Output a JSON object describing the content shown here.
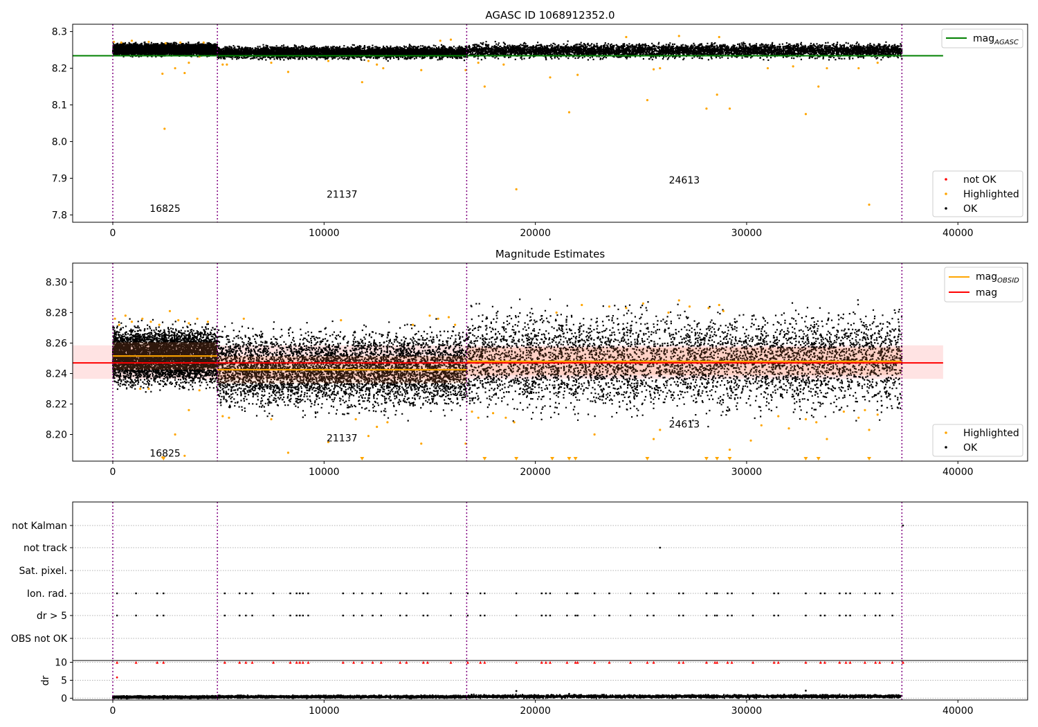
{
  "legend_labels": {
    "mag_agasc": "mag",
    "mag_agasc_sub": "AGASC",
    "mag_obsid": "mag",
    "mag_obsid_sub": "OBSID",
    "mag": "mag",
    "not_ok": "not OK",
    "highlighted": "Highlighted",
    "ok": "OK"
  },
  "colors": {
    "ok": "#000000",
    "highlighted": "#ffa500",
    "not_ok": "#ff0000",
    "mag_agasc": "#008000",
    "mag_obsid": "#ffa500",
    "mag": "#ff0000",
    "band": "#ffc0c0",
    "boundary": "#800080"
  },
  "chart_data": [
    {
      "id": "agasc",
      "type": "scatter",
      "title": "AGASC ID 1068912352.0",
      "xlim": [
        -1900,
        43300
      ],
      "ylim": [
        7.78,
        8.32
      ],
      "x_ticks": [
        0,
        10000,
        20000,
        30000,
        40000
      ],
      "x_tick_labels": [
        "0",
        "10000",
        "20000",
        "30000",
        "40000"
      ],
      "y_ticks": [
        7.8,
        7.9,
        8.0,
        8.1,
        8.2,
        8.3
      ],
      "y_tick_labels": [
        "7.8",
        "7.9",
        "8.0",
        "8.1",
        "8.2",
        "8.3"
      ],
      "obs_boundaries": [
        0,
        4950,
        16750,
        37350
      ],
      "obsid_labels": [
        {
          "text": "16825",
          "x": 2475,
          "y": 7.808
        },
        {
          "text": "21137",
          "x": 10850,
          "y": 7.847
        },
        {
          "text": "24613",
          "x": 27050,
          "y": 7.886
        }
      ],
      "mag_agasc": {
        "value": 8.234,
        "x": [
          -1900,
          39300
        ]
      },
      "ok_segments": [
        {
          "x": [
            0,
            4950
          ],
          "center": 8.251,
          "spread": 0.016
        },
        {
          "x": [
            4950,
            16750
          ],
          "center": 8.243,
          "spread": 0.017
        },
        {
          "x": [
            16750,
            37350
          ],
          "center": 8.248,
          "spread": 0.02
        }
      ],
      "highlighted_points": [
        [
          50,
          8.272
        ],
        [
          400,
          8.27
        ],
        [
          900,
          8.275
        ],
        [
          1700,
          8.272
        ],
        [
          2500,
          8.268
        ],
        [
          3200,
          8.27
        ],
        [
          4300,
          8.27
        ],
        [
          2350,
          8.185
        ],
        [
          2450,
          8.035
        ],
        [
          2950,
          8.2
        ],
        [
          3400,
          8.187
        ],
        [
          3600,
          8.215
        ],
        [
          4100,
          8.232
        ],
        [
          5200,
          8.21
        ],
        [
          5400,
          8.21
        ],
        [
          7500,
          8.215
        ],
        [
          8300,
          8.19
        ],
        [
          10200,
          8.22
        ],
        [
          11800,
          8.162
        ],
        [
          12100,
          8.22
        ],
        [
          12500,
          8.21
        ],
        [
          12800,
          8.2
        ],
        [
          14600,
          8.195
        ],
        [
          15500,
          8.275
        ],
        [
          16000,
          8.278
        ],
        [
          16700,
          8.195
        ],
        [
          17300,
          8.215
        ],
        [
          17600,
          8.15
        ],
        [
          18500,
          8.21
        ],
        [
          19100,
          7.87
        ],
        [
          20700,
          8.175
        ],
        [
          21600,
          8.08
        ],
        [
          22000,
          8.182
        ],
        [
          24300,
          8.285
        ],
        [
          25300,
          8.113
        ],
        [
          25600,
          8.197
        ],
        [
          25900,
          8.2
        ],
        [
          26800,
          8.288
        ],
        [
          28100,
          8.09
        ],
        [
          28600,
          8.128
        ],
        [
          29200,
          8.09
        ],
        [
          31000,
          8.2
        ],
        [
          32200,
          8.205
        ],
        [
          32800,
          8.075
        ],
        [
          33400,
          8.15
        ],
        [
          33800,
          8.2
        ],
        [
          35300,
          8.2
        ],
        [
          35800,
          7.828
        ],
        [
          36200,
          8.215
        ],
        [
          28700,
          8.285
        ]
      ],
      "not_ok_points": []
    },
    {
      "id": "mag_estimates",
      "type": "scatter",
      "title": "Magnitude Estimates",
      "xlim": [
        -1900,
        43300
      ],
      "ylim": [
        8.1825,
        8.3125
      ],
      "x_ticks": [
        0,
        10000,
        20000,
        30000,
        40000
      ],
      "x_tick_labels": [
        "0",
        "10000",
        "20000",
        "30000",
        "40000"
      ],
      "y_ticks": [
        8.2,
        8.22,
        8.24,
        8.26,
        8.28,
        8.3
      ],
      "y_tick_labels": [
        "8.20",
        "8.22",
        "8.24",
        "8.26",
        "8.28",
        "8.30"
      ],
      "obs_boundaries": [
        0,
        4950,
        16750,
        37350
      ],
      "obsid_labels": [
        {
          "text": "16825",
          "x": 2475,
          "y": 8.1855
        },
        {
          "text": "21137",
          "x": 10850,
          "y": 8.1955
        },
        {
          "text": "24613",
          "x": 27050,
          "y": 8.2045
        }
      ],
      "mag": {
        "value": 8.247,
        "x": [
          -1900,
          39300
        ],
        "band": [
          8.2365,
          8.2585
        ]
      },
      "mag_obsid": [
        {
          "x": [
            0,
            4950
          ],
          "value": 8.2515
        },
        {
          "x": [
            4950,
            16750
          ],
          "value": 8.2425
        },
        {
          "x": [
            16750,
            37350
          ],
          "value": 8.248
        }
      ],
      "ok_segments": [
        {
          "x": [
            0,
            4950
          ],
          "center": 8.2515,
          "spread": 0.019
        },
        {
          "x": [
            4950,
            16750
          ],
          "center": 8.2425,
          "spread": 0.026
        },
        {
          "x": [
            16750,
            37350
          ],
          "center": 8.248,
          "spread": 0.033
        }
      ],
      "highlighted_points": [
        [
          100,
          8.276
        ],
        [
          300,
          8.272
        ],
        [
          600,
          8.278
        ],
        [
          900,
          8.274
        ],
        [
          1400,
          8.276
        ],
        [
          1800,
          8.274
        ],
        [
          2200,
          8.272
        ],
        [
          2700,
          8.281
        ],
        [
          3100,
          8.275
        ],
        [
          3600,
          8.273
        ],
        [
          4000,
          8.276
        ],
        [
          4500,
          8.274
        ],
        [
          1300,
          8.23
        ],
        [
          1700,
          8.23
        ],
        [
          2350,
          8.185
        ],
        [
          2950,
          8.2
        ],
        [
          3400,
          8.186
        ],
        [
          3600,
          8.216
        ],
        [
          4100,
          8.229
        ],
        [
          5200,
          8.212
        ],
        [
          5500,
          8.211
        ],
        [
          6200,
          8.276
        ],
        [
          7500,
          8.21
        ],
        [
          8300,
          8.188
        ],
        [
          10200,
          8.195
        ],
        [
          10800,
          8.275
        ],
        [
          11500,
          8.21
        ],
        [
          12100,
          8.199
        ],
        [
          12500,
          8.205
        ],
        [
          13000,
          8.208
        ],
        [
          14600,
          8.194
        ],
        [
          14200,
          8.272
        ],
        [
          15000,
          8.278
        ],
        [
          15400,
          8.276
        ],
        [
          15900,
          8.277
        ],
        [
          16200,
          8.272
        ],
        [
          16700,
          8.194
        ],
        [
          17000,
          8.215
        ],
        [
          17300,
          8.211
        ],
        [
          18000,
          8.214
        ],
        [
          18600,
          8.211
        ],
        [
          19000,
          8.208
        ],
        [
          21000,
          8.28
        ],
        [
          22200,
          8.285
        ],
        [
          22800,
          8.2
        ],
        [
          23500,
          8.284
        ],
        [
          24300,
          8.283
        ],
        [
          25100,
          8.286
        ],
        [
          25600,
          8.197
        ],
        [
          25900,
          8.203
        ],
        [
          26300,
          8.28
        ],
        [
          26800,
          8.288
        ],
        [
          27300,
          8.284
        ],
        [
          28200,
          8.283
        ],
        [
          28700,
          8.285
        ],
        [
          28900,
          8.281
        ],
        [
          29200,
          8.19
        ],
        [
          30200,
          8.196
        ],
        [
          30700,
          8.206
        ],
        [
          31500,
          8.212
        ],
        [
          32000,
          8.204
        ],
        [
          32800,
          8.21
        ],
        [
          33300,
          8.208
        ],
        [
          33800,
          8.197
        ],
        [
          34600,
          8.215
        ],
        [
          35300,
          8.211
        ],
        [
          35600,
          8.216
        ],
        [
          35800,
          8.203
        ],
        [
          36200,
          8.213
        ]
      ],
      "below_range_markers": [
        2400,
        11800,
        17600,
        19100,
        20800,
        21600,
        21900,
        25300,
        28100,
        28600,
        29200,
        32800,
        33400,
        35800
      ],
      "not_ok_points": []
    },
    {
      "id": "flags",
      "type": "scatter",
      "xlim": [
        -1900,
        43300
      ],
      "categories": [
        "OBS not OK",
        "dr > 5",
        "Ion. rad.",
        "Sat. pixel.",
        "not track",
        "not Kalman"
      ],
      "obs_boundaries": [
        0,
        4950,
        16750,
        37350
      ],
      "flag_points": {
        "Ion. rad.": [
          200,
          1100,
          2100,
          2400,
          5300,
          6000,
          6300,
          6600,
          7600,
          8400,
          8700,
          8850,
          9000,
          9250,
          10900,
          11400,
          11800,
          12300,
          12700,
          13600,
          13900,
          14700,
          14900,
          16000,
          16800,
          17400,
          17600,
          19100,
          20300,
          20500,
          20700,
          21500,
          21900,
          22000,
          22800,
          23500,
          24500,
          25300,
          25600,
          26800,
          27000,
          28100,
          28500,
          28600,
          29100,
          29300,
          30300,
          31300,
          31500,
          32800,
          33500,
          33700,
          34400,
          34700,
          34900,
          35600,
          36100,
          36300,
          36900
        ],
        "dr > 5": [
          200,
          1100,
          2100,
          2400,
          5300,
          6000,
          6300,
          6600,
          7600,
          8400,
          8700,
          8850,
          9000,
          9250,
          10900,
          11400,
          11800,
          12300,
          12700,
          13600,
          13900,
          14700,
          14900,
          16000,
          16800,
          17400,
          17600,
          19100,
          20300,
          20500,
          20700,
          21500,
          21900,
          22000,
          22800,
          23500,
          24500,
          25300,
          25600,
          26800,
          27000,
          28100,
          28500,
          28600,
          29100,
          29300,
          30300,
          31300,
          31500,
          32800,
          33500,
          33700,
          34400,
          34700,
          34900,
          35600,
          36100,
          36300,
          36900
        ],
        "not track": [
          25900
        ],
        "not Kalman": [
          37400
        ]
      }
    },
    {
      "id": "dr",
      "type": "scatter",
      "ylabel": "dr",
      "xlim": [
        -1900,
        43300
      ],
      "ylim": [
        -0.5,
        10.5
      ],
      "x_ticks": [
        0,
        10000,
        20000,
        30000,
        40000
      ],
      "x_tick_labels": [
        "0",
        "10000",
        "20000",
        "30000",
        "40000"
      ],
      "y_ticks": [
        0,
        5,
        10
      ],
      "y_tick_labels": [
        "0",
        "5",
        "10"
      ],
      "obs_boundaries": [
        0,
        4950,
        16750,
        37350
      ],
      "ok_segments": [
        {
          "x": [
            0,
            4950
          ],
          "center": 0.3,
          "spread": 0.35
        },
        {
          "x": [
            4950,
            16750
          ],
          "center": 0.4,
          "spread": 0.4
        },
        {
          "x": [
            16750,
            37350
          ],
          "center": 0.5,
          "spread": 0.5
        }
      ],
      "ok_extra_points": [
        [
          19100,
          2.0
        ],
        [
          32800,
          2.1
        ],
        [
          21600,
          1.2
        ]
      ],
      "clipped_points": [
        200,
        1100,
        2100,
        2400,
        5300,
        6000,
        6300,
        6600,
        7600,
        8400,
        8700,
        8850,
        9000,
        9250,
        10900,
        11400,
        11800,
        12300,
        12700,
        13600,
        13900,
        14700,
        14900,
        16000,
        16800,
        17400,
        17600,
        19100,
        20300,
        20500,
        20700,
        21500,
        21900,
        22000,
        22800,
        23500,
        24500,
        25300,
        25600,
        26800,
        27000,
        28100,
        28500,
        28600,
        29100,
        29300,
        30300,
        31300,
        31500,
        32800,
        33500,
        33700,
        34400,
        34700,
        34900,
        35600,
        36100,
        36300,
        36900,
        37400
      ],
      "not_ok_points": [
        [
          200,
          5.8
        ]
      ]
    }
  ]
}
